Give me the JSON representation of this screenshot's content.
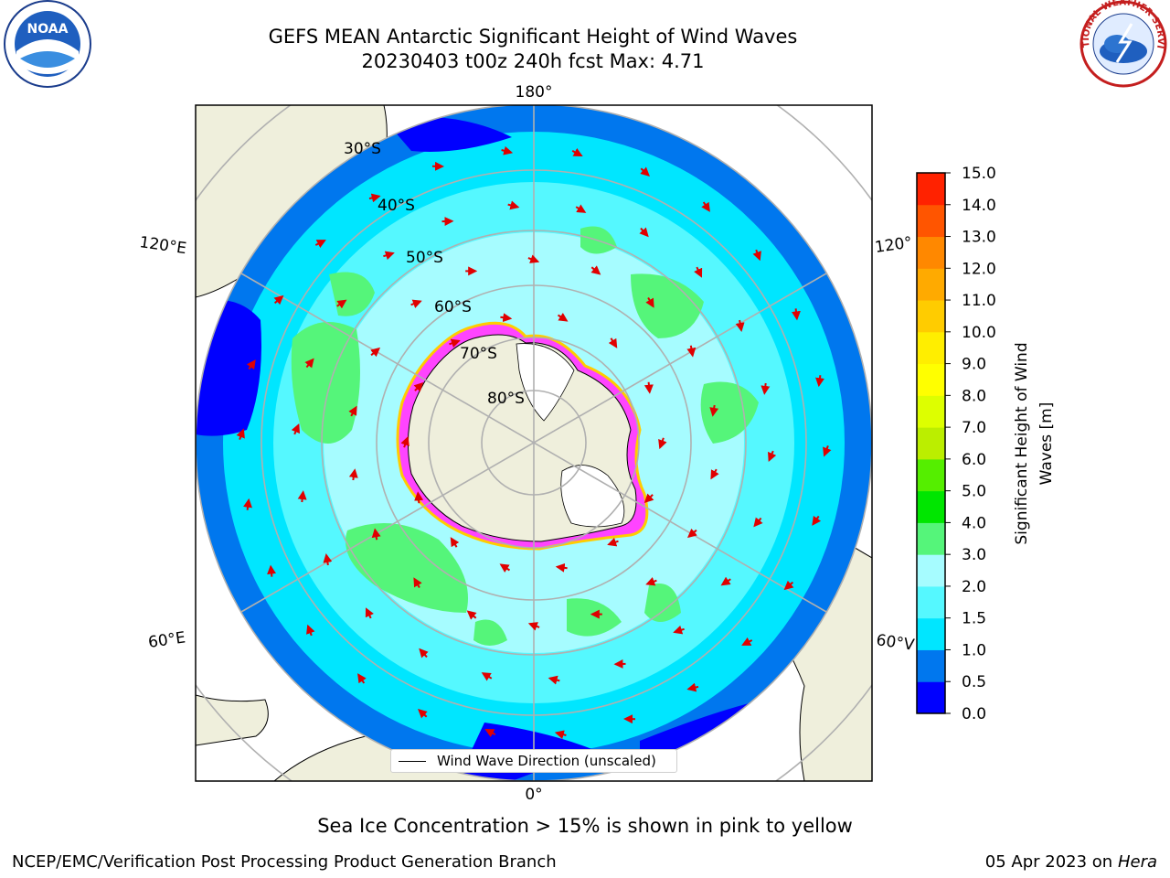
{
  "title": {
    "line1": "GEFS MEAN Antarctic Significant Height of Wind Waves",
    "line2": "20230403 t00z 240h fcst   Max: 4.71"
  },
  "map": {
    "projection": "south-polar-stereographic",
    "lon_labels": {
      "top": "180°",
      "bottom": "0°",
      "left_upper": "120°E",
      "left_lower": "60°E",
      "right_upper": "120°",
      "right_lower": "60°V"
    },
    "lat_labels": [
      "30°S",
      "40°S",
      "50°S",
      "60°S",
      "70°S",
      "80°S"
    ],
    "colors": {
      "land": "#efefdc",
      "ice": "#ffffff",
      "arrow": "#e00000",
      "grid": "#b0b0b0"
    }
  },
  "legend": {
    "label": "Wind Wave Direction (unscaled)"
  },
  "colorbar": {
    "label_line1": "Significant Height of Wind",
    "label_line2": "Waves [m]",
    "ticks": [
      "0.0",
      "0.5",
      "1.0",
      "1.5",
      "2.0",
      "3.0",
      "4.0",
      "5.0",
      "6.0",
      "7.0",
      "8.0",
      "9.0",
      "10.0",
      "11.0",
      "12.0",
      "13.0",
      "14.0",
      "15.0"
    ],
    "colors": [
      "#0000ff",
      "#0077ee",
      "#00e6ff",
      "#55f8ff",
      "#a6fcff",
      "#55f57a",
      "#00e600",
      "#55ee00",
      "#bbee00",
      "#ddff00",
      "#ffff00",
      "#ffee00",
      "#ffcc00",
      "#ffaa00",
      "#ff8800",
      "#ff5500",
      "#ff2200"
    ]
  },
  "note": "Sea Ice Concentration > 15% is shown in pink to yellow",
  "credit_left": "NCEP/EMC/Verification Post Processing Product Generation Branch",
  "credit_right_date": "05 Apr 2023 on ",
  "credit_right_host": "Hera",
  "logos": {
    "left": "NOAA",
    "right": "NATIONAL WEATHER SERVICE"
  }
}
